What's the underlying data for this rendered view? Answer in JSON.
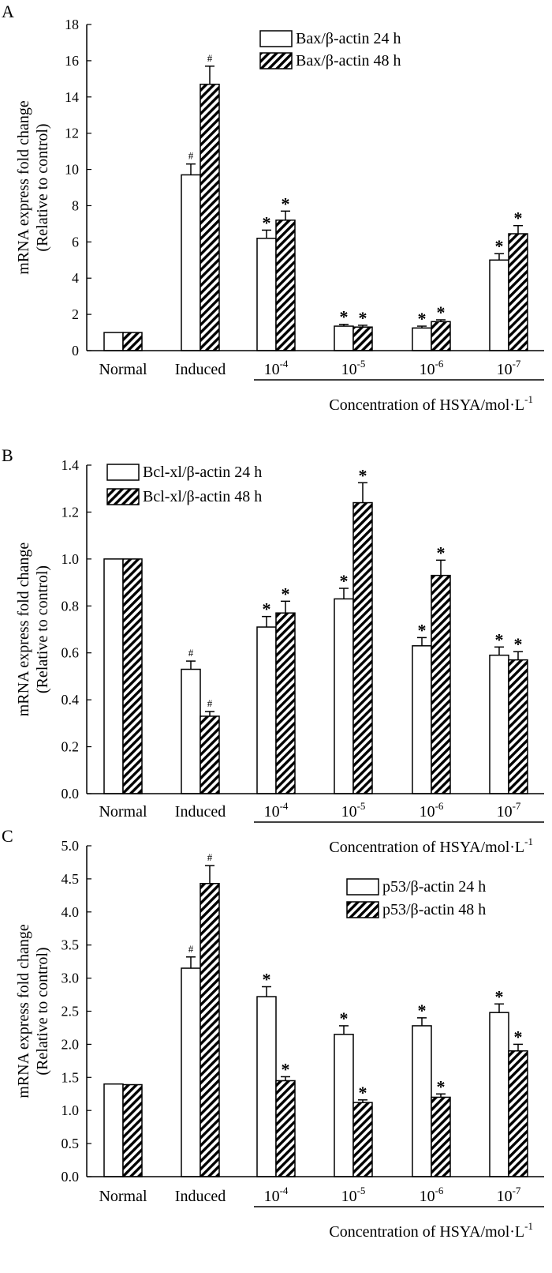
{
  "chart_data": [
    {
      "panel": "A",
      "type": "bar",
      "title": "",
      "ylabel": "mRNA express fold change",
      "ylabel2": "(Relative to control)",
      "xlabel": "Concentration of HSYA/mol·L",
      "xlabel_sup": "-1",
      "ylim": [
        0,
        18
      ],
      "yticks": [
        "0",
        "2",
        "4",
        "6",
        "8",
        "10",
        "12",
        "14",
        "16",
        "18"
      ],
      "categories": [
        {
          "base": "Normal",
          "sup": ""
        },
        {
          "base": "Induced",
          "sup": ""
        },
        {
          "base": "10",
          "sup": "-4"
        },
        {
          "base": "10",
          "sup": "-5"
        },
        {
          "base": "10",
          "sup": "-6"
        },
        {
          "base": "10",
          "sup": "-7"
        }
      ],
      "legend_position": "top-right",
      "series": [
        {
          "name": "Bax/β-actin 24 h",
          "pattern": "open",
          "values": [
            1.0,
            9.7,
            6.2,
            1.35,
            1.25,
            5.0
          ],
          "errors": [
            0,
            0.6,
            0.45,
            0.1,
            0.1,
            0.35
          ],
          "markers": [
            "",
            "#",
            "*",
            "*",
            "*",
            "*"
          ]
        },
        {
          "name": "Bax/β-actin 48 h",
          "pattern": "hatched",
          "values": [
            1.0,
            14.7,
            7.2,
            1.3,
            1.6,
            6.45
          ],
          "errors": [
            0,
            1.0,
            0.5,
            0.1,
            0.1,
            0.45
          ],
          "markers": [
            "",
            "#",
            "*",
            "*",
            "*",
            "*"
          ]
        }
      ]
    },
    {
      "panel": "B",
      "type": "bar",
      "title": "",
      "ylabel": "mRNA express fold change",
      "ylabel2": "(Relative to control)",
      "xlabel": "Concentration of HSYA/mol·L",
      "xlabel_sup": "-1",
      "ylim": [
        0,
        1.4
      ],
      "yticks": [
        "0.0",
        "0.2",
        "0.4",
        "0.6",
        "0.8",
        "1.0",
        "1.2",
        "1.4"
      ],
      "categories": [
        {
          "base": "Normal",
          "sup": ""
        },
        {
          "base": "Induced",
          "sup": ""
        },
        {
          "base": "10",
          "sup": "-4"
        },
        {
          "base": "10",
          "sup": "-5"
        },
        {
          "base": "10",
          "sup": "-6"
        },
        {
          "base": "10",
          "sup": "-7"
        }
      ],
      "legend_position": "top-left",
      "series": [
        {
          "name": "Bcl-xl/β-actin 24 h",
          "pattern": "open",
          "values": [
            1.0,
            0.53,
            0.71,
            0.83,
            0.63,
            0.59
          ],
          "errors": [
            0,
            0.035,
            0.045,
            0.045,
            0.035,
            0.035
          ],
          "markers": [
            "",
            "#",
            "*",
            "*",
            "*",
            "*"
          ]
        },
        {
          "name": "Bcl-xl/β-actin 48 h",
          "pattern": "hatched",
          "values": [
            1.0,
            0.33,
            0.77,
            1.24,
            0.93,
            0.57
          ],
          "errors": [
            0,
            0.02,
            0.05,
            0.085,
            0.065,
            0.035
          ],
          "markers": [
            "",
            "#",
            "*",
            "*",
            "*",
            "*"
          ]
        }
      ]
    },
    {
      "panel": "C",
      "type": "bar",
      "title": "",
      "ylabel": "mRNA express fold change",
      "ylabel2": "(Relative to control)",
      "xlabel": "Concentration of HSYA/mol·L",
      "xlabel_sup": "-1",
      "ylim": [
        0,
        5.0
      ],
      "yticks": [
        "0.0",
        "0.5",
        "1.0",
        "1.5",
        "2.0",
        "2.5",
        "3.0",
        "3.5",
        "4.0",
        "4.5",
        "5.0"
      ],
      "categories": [
        {
          "base": "Normal",
          "sup": ""
        },
        {
          "base": "Induced",
          "sup": ""
        },
        {
          "base": "10",
          "sup": "-4"
        },
        {
          "base": "10",
          "sup": "-5"
        },
        {
          "base": "10",
          "sup": "-6"
        },
        {
          "base": "10",
          "sup": "-7"
        }
      ],
      "legend_position": "top-right",
      "series": [
        {
          "name": "p53/β-actin 24 h",
          "pattern": "open",
          "values": [
            1.4,
            3.15,
            2.72,
            2.15,
            2.28,
            2.48
          ],
          "errors": [
            0,
            0.17,
            0.15,
            0.13,
            0.12,
            0.13
          ],
          "markers": [
            "",
            "#",
            "*",
            "*",
            "*",
            "*"
          ]
        },
        {
          "name": "p53/β-actin 48 h",
          "pattern": "hatched",
          "values": [
            1.39,
            4.43,
            1.45,
            1.12,
            1.2,
            1.9
          ],
          "errors": [
            0,
            0.27,
            0.06,
            0.04,
            0.05,
            0.1
          ],
          "markers": [
            "",
            "#",
            "*",
            "*",
            "*",
            "*"
          ]
        }
      ]
    }
  ]
}
